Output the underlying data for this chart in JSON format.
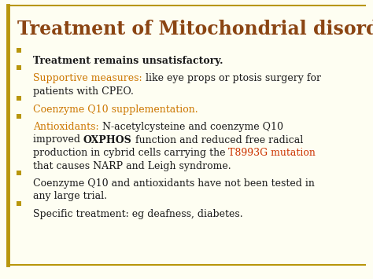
{
  "title": "Treatment of Mitochondrial disorders",
  "title_color": "#8B4513",
  "background_color": "#FEFEF2",
  "border_color": "#B8960C",
  "bullet_color": "#B8960C",
  "bullets": [
    {
      "lines": [
        [
          {
            "text": "Treatment remains unsatisfactory.",
            "color": "#1a1a1a",
            "bold": true,
            "italic": false
          }
        ]
      ]
    },
    {
      "lines": [
        [
          {
            "text": "Supportive measures:",
            "color": "#CC7700",
            "bold": false,
            "italic": false
          },
          {
            "text": " like eye props or ptosis surgery for",
            "color": "#1a1a1a",
            "bold": false,
            "italic": false
          }
        ],
        [
          {
            "text": "patients with CPEO.",
            "color": "#1a1a1a",
            "bold": false,
            "italic": false
          }
        ]
      ]
    },
    {
      "lines": [
        [
          {
            "text": "Coenzyme Q10 supplementation.",
            "color": "#CC7700",
            "bold": false,
            "italic": false
          }
        ]
      ]
    },
    {
      "lines": [
        [
          {
            "text": "Antioxidants:",
            "color": "#CC7700",
            "bold": false,
            "italic": false
          },
          {
            "text": " N-acetylcysteine and coenzyme Q10",
            "color": "#1a1a1a",
            "bold": false,
            "italic": false
          }
        ],
        [
          {
            "text": "improved ",
            "color": "#1a1a1a",
            "bold": false,
            "italic": false
          },
          {
            "text": "OXPHOS",
            "color": "#1a1a1a",
            "bold": true,
            "italic": false
          },
          {
            "text": " function and reduced free radical",
            "color": "#1a1a1a",
            "bold": false,
            "italic": false
          }
        ],
        [
          {
            "text": "production in cybrid cells carrying the ",
            "color": "#1a1a1a",
            "bold": false,
            "italic": false
          },
          {
            "text": "T8993G mutation",
            "color": "#CC3300",
            "bold": false,
            "italic": false
          }
        ],
        [
          {
            "text": "that causes NARP and Leigh syndrome.",
            "color": "#1a1a1a",
            "bold": false,
            "italic": false
          }
        ]
      ]
    },
    {
      "lines": [
        [
          {
            "text": "Coenzyme Q10 and antioxidants have not been tested in",
            "color": "#1a1a1a",
            "bold": false,
            "italic": false
          }
        ],
        [
          {
            "text": "any large trial.",
            "color": "#1a1a1a",
            "bold": false,
            "italic": false
          }
        ]
      ]
    },
    {
      "lines": [
        [
          {
            "text": "Specific treatment: eg deafness, diabetes.",
            "color": "#1a1a1a",
            "bold": false,
            "italic": false
          }
        ]
      ]
    }
  ],
  "figsize": [
    4.74,
    3.55
  ],
  "dpi": 100
}
